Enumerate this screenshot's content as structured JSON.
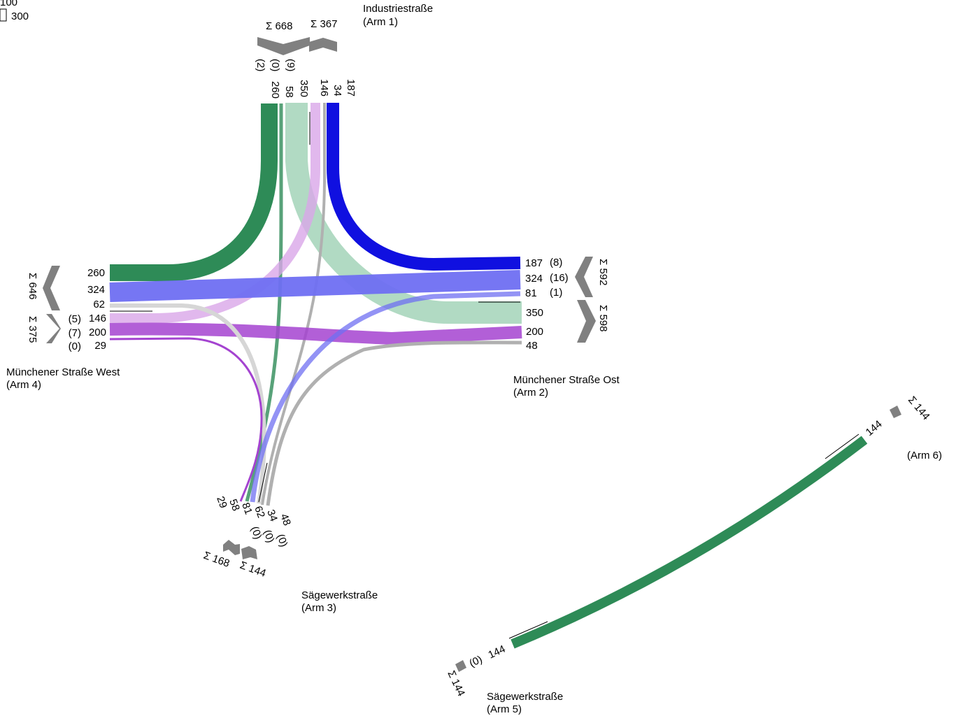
{
  "legend": {
    "top_value": "100",
    "box_value": "300"
  },
  "colors": {
    "dark_green": "#2e8b57",
    "light_green": "#a3d4b9",
    "blue": "#1010e0",
    "light_blue": "#6f6ff2",
    "purple": "#a443d0",
    "light_purple": "#d9a6e8",
    "gray": "#b0b0b0",
    "light_gray": "#d6d6d6",
    "chevron": "#808080"
  },
  "arms": {
    "arm1": {
      "name": "Industriestraße",
      "label": "(Arm 1)",
      "sum_in": "Σ 668",
      "sum_out": "Σ 367",
      "in_values": [
        "260",
        "58",
        "350"
      ],
      "in_heavy": [
        "(2)",
        "(0)",
        "(9)"
      ],
      "out_values": [
        "146",
        "34",
        "187"
      ]
    },
    "arm2": {
      "name": "Münchener Straße Ost",
      "label": "(Arm 2)",
      "sum_out": "Σ 592",
      "sum_in": "Σ 598",
      "out_values": [
        "187",
        "324",
        "81"
      ],
      "out_heavy": [
        "(8)",
        "(16)",
        "(1)"
      ],
      "in_values": [
        "350",
        "200",
        "48"
      ]
    },
    "arm3": {
      "name": "Sägewerkstraße",
      "label": "(Arm 3)",
      "sum_in": "Σ 168",
      "sum_out": "Σ 144",
      "values": [
        "29",
        "58",
        "81",
        "62",
        "34",
        "48"
      ],
      "heavy": [
        "(0)",
        "(0)",
        "(0)"
      ]
    },
    "arm4": {
      "name": "Münchener Straße West",
      "label": "(Arm 4)",
      "sum_in": "Σ 646",
      "sum_out": "Σ 375",
      "in_values": [
        "260",
        "324",
        "62"
      ],
      "out_values": [
        "146",
        "200",
        "29"
      ],
      "out_heavy": [
        "(5)",
        "(7)",
        "(0)"
      ]
    },
    "arm5": {
      "name": "Sägewerkstraße",
      "label": "(Arm 5)",
      "sum": "Σ 144",
      "value": "144",
      "heavy": "(0)"
    },
    "arm6": {
      "label": "(Arm 6)",
      "sum": "Σ 144",
      "value": "144"
    }
  }
}
